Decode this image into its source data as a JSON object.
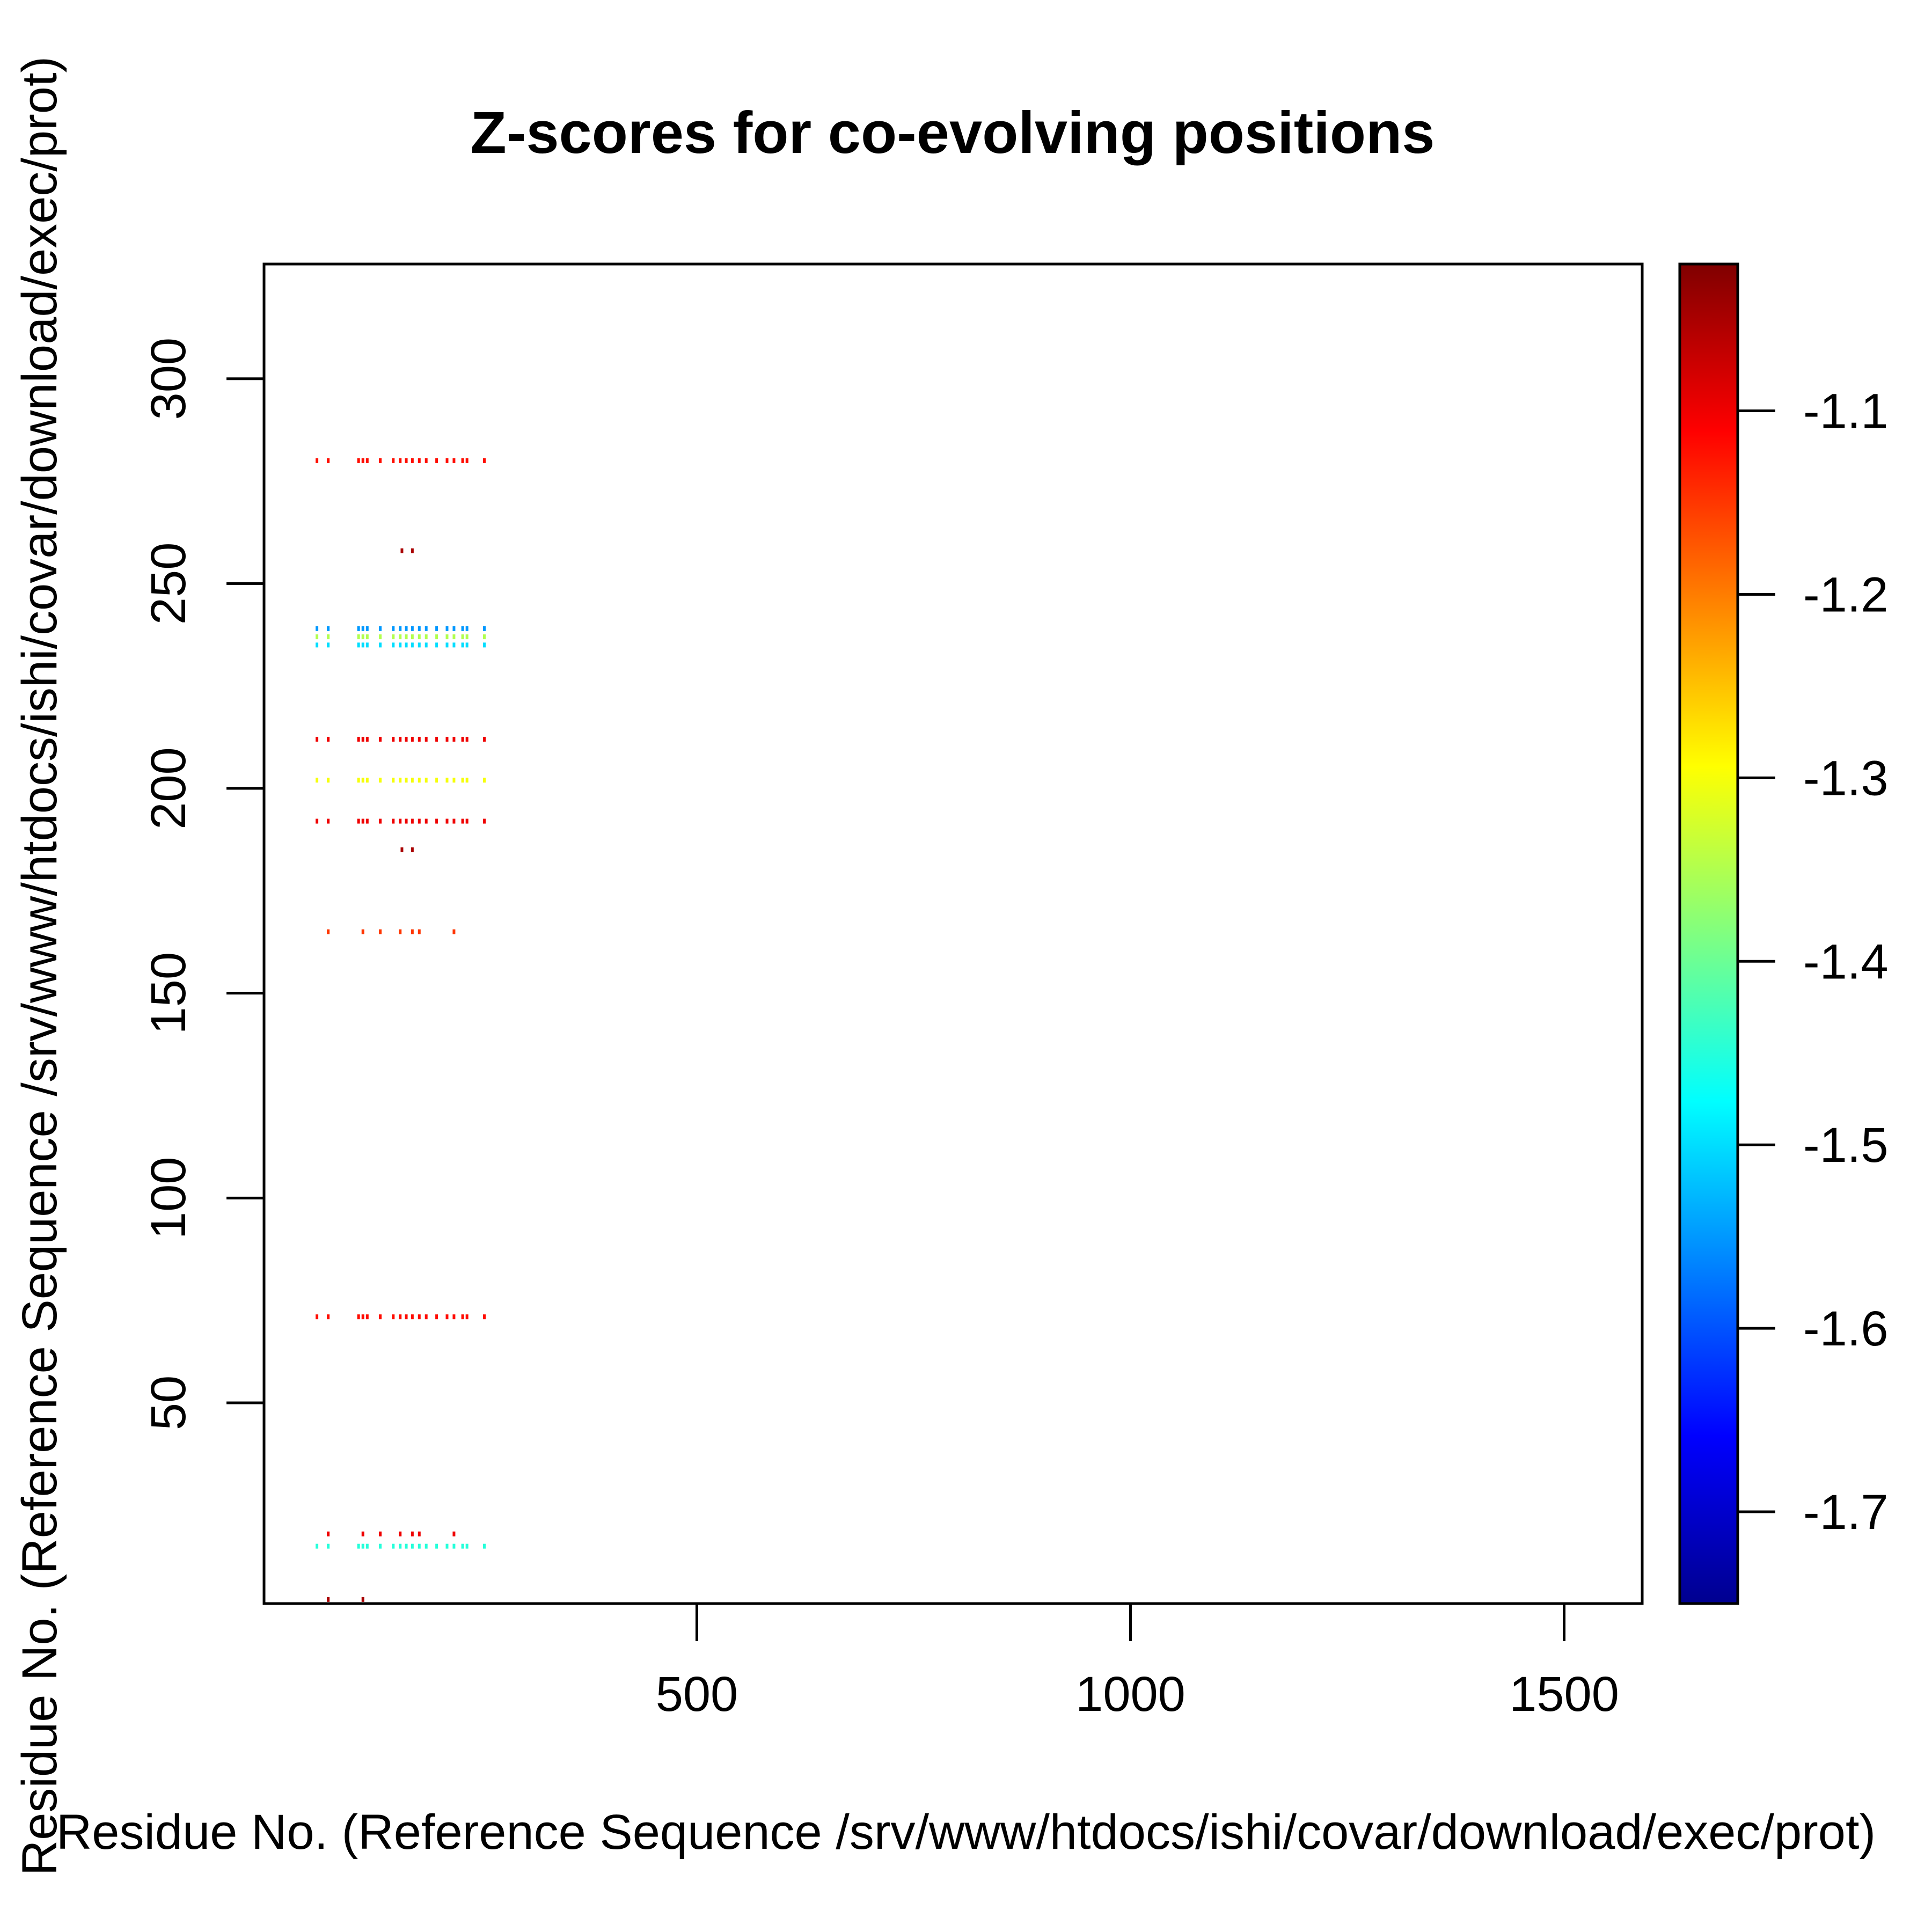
{
  "chart_data": {
    "type": "heatmap",
    "title": "Z-scores for co-evolving positions",
    "xlabel": "Residue No. (Reference Sequence /srv/www/htdocs/ishi/covar/download/exec/prot)",
    "ylabel": "Residue No. (Reference Sequence /srv/www/htdocs/ishi/covar/download/exec/prot)",
    "xlim": [
      1,
      1590
    ],
    "ylim": [
      1,
      328
    ],
    "x_ticks": [
      500,
      1000,
      1500
    ],
    "x_tick_labels": [
      "500",
      "1000",
      "1500"
    ],
    "y_ticks": [
      50,
      100,
      150,
      200,
      250,
      300
    ],
    "y_tick_labels": [
      "50",
      "100",
      "150",
      "200",
      "250",
      "300"
    ],
    "colorbar": {
      "range": [
        -1.75,
        -1.02
      ],
      "ticks": [
        -1.1,
        -1.2,
        -1.3,
        -1.4,
        -1.5,
        -1.6,
        -1.7
      ],
      "tick_labels": [
        "-1.1",
        "-1.2",
        "-1.3",
        "-1.4",
        "-1.5",
        "-1.6",
        "-1.7"
      ],
      "colors": [
        "#00008F",
        "#0000FF",
        "#0080FF",
        "#00FFFF",
        "#80FF80",
        "#FFFF00",
        "#FF8000",
        "#FF0000",
        "#800000"
      ]
    },
    "grid": false,
    "x_positions": [
      62,
      75,
      110,
      115,
      120,
      135,
      150,
      158,
      165,
      172,
      180,
      188,
      200,
      212,
      220,
      230,
      235,
      255
    ],
    "rows": [
      {
        "y": 280,
        "value": -1.12
      },
      {
        "y": 258,
        "value": -1.05,
        "cols": [
          160,
          172
        ]
      },
      {
        "y": 239,
        "value": -1.55
      },
      {
        "y": 237,
        "value": -1.35
      },
      {
        "y": 235,
        "value": -1.5
      },
      {
        "y": 212,
        "value": -1.1
      },
      {
        "y": 202,
        "value": -1.3
      },
      {
        "y": 192,
        "value": -1.1
      },
      {
        "y": 185,
        "value": -1.05,
        "cols": [
          160,
          172
        ]
      },
      {
        "y": 165,
        "value": -1.15,
        "cols": [
          75,
          115,
          135,
          158,
          172,
          180,
          220
        ]
      },
      {
        "y": 71,
        "value": -1.12
      },
      {
        "y": 18,
        "value": -1.1,
        "cols": [
          75,
          115,
          135,
          158,
          172,
          180,
          220
        ]
      },
      {
        "y": 15,
        "value": -1.45
      },
      {
        "y": 2,
        "value": -1.05,
        "cols": [
          75,
          115
        ]
      }
    ]
  }
}
